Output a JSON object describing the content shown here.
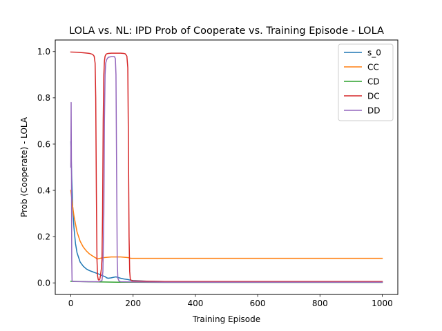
{
  "chart_data": {
    "type": "line",
    "title": "LOLA vs. NL: IPD Prob of Cooperate vs. Training Episode - LOLA",
    "xlabel": "Training Episode",
    "ylabel": "Prob (Cooperate) - LOLA",
    "xlim": [
      -50,
      1050
    ],
    "ylim": [
      -0.05,
      1.05
    ],
    "xticks": [
      0,
      200,
      400,
      600,
      800,
      1000
    ],
    "yticks": [
      0.0,
      0.2,
      0.4,
      0.6,
      0.8,
      1.0
    ],
    "xtick_labels": [
      "0",
      "200",
      "400",
      "600",
      "800",
      "1000"
    ],
    "ytick_labels": [
      "0.0",
      "0.2",
      "0.4",
      "0.6",
      "0.8",
      "1.0"
    ],
    "grid": false,
    "legend_position": "top-right",
    "series": [
      {
        "name": "s_0",
        "color": "#1f77b4",
        "x": [
          0,
          3,
          6,
          10,
          15,
          20,
          30,
          40,
          50,
          60,
          70,
          80,
          90,
          100,
          110,
          115,
          120,
          130,
          140,
          145,
          150,
          160,
          170,
          185,
          190,
          200,
          250,
          300,
          400,
          500,
          600,
          700,
          800,
          900,
          1000
        ],
        "y": [
          0.61,
          0.45,
          0.33,
          0.24,
          0.17,
          0.13,
          0.09,
          0.072,
          0.06,
          0.053,
          0.048,
          0.043,
          0.038,
          0.032,
          0.027,
          0.022,
          0.02,
          0.022,
          0.025,
          0.026,
          0.024,
          0.02,
          0.017,
          0.014,
          0.012,
          0.01,
          0.007,
          0.006,
          0.005,
          0.005,
          0.004,
          0.004,
          0.004,
          0.004,
          0.004
        ]
      },
      {
        "name": "CC",
        "color": "#ff7f0e",
        "x": [
          0,
          5,
          10,
          20,
          30,
          40,
          50,
          60,
          70,
          80,
          85,
          90,
          100,
          110,
          120,
          130,
          140,
          150,
          160,
          170,
          180,
          185,
          190,
          195,
          200,
          300,
          400,
          500,
          600,
          700,
          800,
          900,
          1000
        ],
        "y": [
          0.4,
          0.34,
          0.29,
          0.22,
          0.18,
          0.155,
          0.138,
          0.125,
          0.116,
          0.108,
          0.103,
          0.105,
          0.108,
          0.11,
          0.111,
          0.112,
          0.112,
          0.112,
          0.112,
          0.111,
          0.11,
          0.109,
          0.107,
          0.106,
          0.106,
          0.106,
          0.106,
          0.106,
          0.106,
          0.106,
          0.106,
          0.106,
          0.106
        ]
      },
      {
        "name": "CD",
        "color": "#2ca02c",
        "x": [
          0,
          50,
          100,
          150,
          200,
          300,
          400,
          500,
          600,
          700,
          800,
          900,
          1000
        ],
        "y": [
          0.007,
          0.005,
          0.004,
          0.003,
          0.003,
          0.002,
          0.002,
          0.002,
          0.002,
          0.002,
          0.002,
          0.002,
          0.002
        ]
      },
      {
        "name": "DC",
        "color": "#d62728",
        "x": [
          0,
          20,
          40,
          60,
          70,
          75,
          78,
          80,
          82,
          84,
          86,
          88,
          90,
          93,
          95,
          98,
          100,
          102,
          104,
          106,
          108,
          110,
          113,
          115,
          120,
          130,
          140,
          150,
          160,
          170,
          175,
          180,
          183,
          185,
          187,
          189,
          191,
          195,
          200,
          300,
          400,
          500,
          600,
          700,
          800,
          900,
          1000
        ],
        "y": [
          0.998,
          0.997,
          0.995,
          0.992,
          0.988,
          0.98,
          0.95,
          0.8,
          0.4,
          0.1,
          0.03,
          0.015,
          0.012,
          0.015,
          0.03,
          0.06,
          0.1,
          0.3,
          0.7,
          0.9,
          0.96,
          0.98,
          0.988,
          0.99,
          0.992,
          0.993,
          0.993,
          0.993,
          0.993,
          0.992,
          0.99,
          0.98,
          0.93,
          0.6,
          0.2,
          0.05,
          0.015,
          0.01,
          0.008,
          0.006,
          0.006,
          0.006,
          0.006,
          0.006,
          0.006,
          0.006,
          0.006
        ]
      },
      {
        "name": "DD",
        "color": "#9467bd",
        "x": [
          0,
          1,
          2,
          3,
          4,
          5,
          10,
          50,
          90,
          100,
          103,
          106,
          108,
          110,
          112,
          115,
          120,
          130,
          140,
          143,
          145,
          147,
          149,
          151,
          155,
          160,
          200,
          300,
          400,
          500,
          600,
          700,
          800,
          900,
          1000
        ],
        "y": [
          0.5,
          0.78,
          0.5,
          0.1,
          0.01,
          0.006,
          0.006,
          0.005,
          0.005,
          0.01,
          0.05,
          0.3,
          0.7,
          0.9,
          0.95,
          0.965,
          0.975,
          0.978,
          0.978,
          0.97,
          0.9,
          0.5,
          0.1,
          0.02,
          0.008,
          0.005,
          0.004,
          0.003,
          0.003,
          0.003,
          0.003,
          0.003,
          0.003,
          0.003,
          0.003
        ]
      }
    ]
  }
}
